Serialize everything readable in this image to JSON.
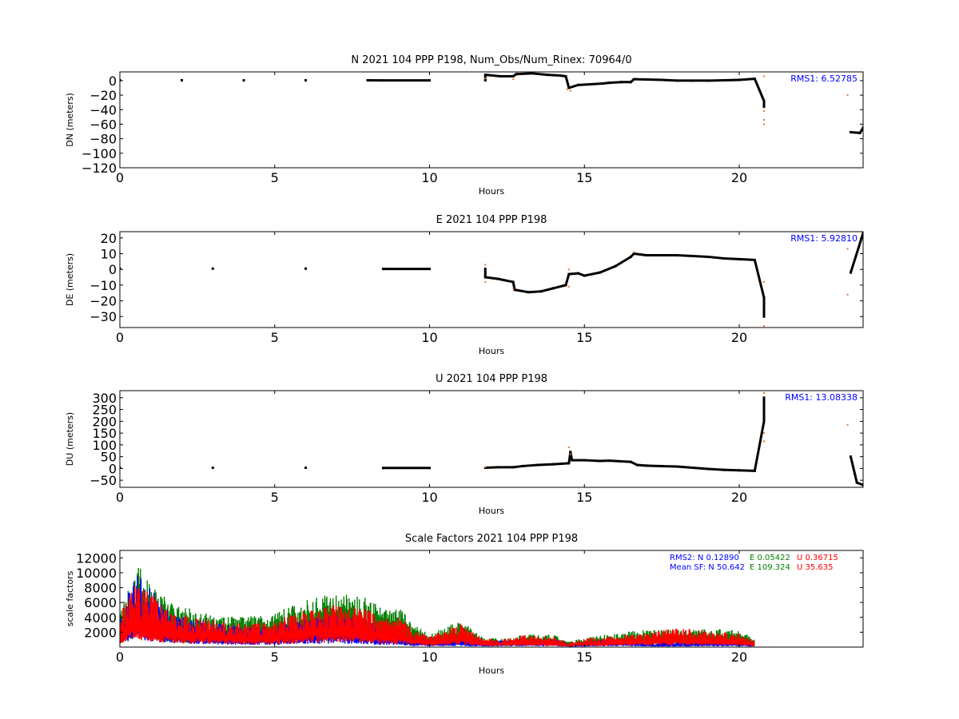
{
  "colors": {
    "background": "#ffffff",
    "axes": "#000000",
    "position": "#000000",
    "outlier": "#e07b39",
    "rms_text": "#0000ff",
    "north": "#0000ff",
    "east": "#008000",
    "up": "#ff0000"
  },
  "chart_data": [
    {
      "type": "scatter",
      "title": "N 2021 104 PPP  P198, Num_Obs/Num_Rinex: 70964/0",
      "xlabel": "Hours",
      "ylabel": "DN (meters)",
      "xlim": [
        0,
        24
      ],
      "ylim": [
        -120,
        12
      ],
      "xticks": [
        0,
        5,
        10,
        15,
        20
      ],
      "yticks": [
        -120,
        -100,
        -80,
        -60,
        -40,
        -20,
        0
      ],
      "grid": false,
      "annotation": "RMS1:  6.52785",
      "series": [
        {
          "points": [
            [
              0,
              0.5
            ],
            [
              2,
              0.5
            ],
            [
              4,
              0.4
            ],
            [
              6,
              0.4
            ],
            [
              8,
              0.5
            ],
            [
              8.5,
              0.3
            ],
            [
              10,
              0.3
            ],
            [
              11.8,
              0.4
            ],
            [
              11.8,
              8
            ],
            [
              12.3,
              6
            ],
            [
              12.7,
              6
            ],
            [
              12.8,
              9
            ],
            [
              13.3,
              10
            ],
            [
              13.8,
              8
            ],
            [
              14.2,
              7
            ],
            [
              14.4,
              6
            ],
            [
              14.5,
              -10
            ],
            [
              14.8,
              -6
            ],
            [
              15.2,
              -5
            ],
            [
              15.6,
              -4
            ],
            [
              15.8,
              -3
            ],
            [
              16.2,
              -2
            ],
            [
              16.5,
              -2
            ],
            [
              16.6,
              2
            ],
            [
              17,
              1.5
            ],
            [
              17.5,
              1
            ],
            [
              18,
              0
            ],
            [
              18.5,
              0
            ],
            [
              19,
              0
            ],
            [
              19.5,
              0.5
            ],
            [
              20,
              1
            ],
            [
              20.5,
              2.5
            ],
            [
              20.8,
              -28
            ],
            [
              20.8,
              -36
            ],
            [
              23.6,
              -71
            ],
            [
              23.9,
              -72
            ],
            [
              24,
              -65
            ]
          ]
        },
        {
          "points": [
            [
              11.8,
              3
            ],
            [
              12.7,
              2
            ],
            [
              14.45,
              -12
            ],
            [
              14.55,
              -14
            ],
            [
              20.8,
              -42
            ],
            [
              20.8,
              -54
            ],
            [
              20.8,
              -60
            ],
            [
              20.8,
              6
            ],
            [
              23.5,
              -20
            ]
          ]
        }
      ]
    },
    {
      "type": "scatter",
      "title": "E 2021 104 PPP  P198",
      "xlabel": "Hours",
      "ylabel": "DE (meters)",
      "xlim": [
        0,
        24
      ],
      "ylim": [
        -37,
        24
      ],
      "xticks": [
        0,
        5,
        10,
        15,
        20
      ],
      "yticks": [
        -30,
        -20,
        -10,
        0,
        10,
        20
      ],
      "grid": false,
      "annotation": "RMS1:  5.92810",
      "series": [
        {
          "points": [
            [
              0,
              0.5
            ],
            [
              3,
              0.5
            ],
            [
              6,
              0.5
            ],
            [
              8.5,
              0.3
            ],
            [
              10,
              0.3
            ],
            [
              11.8,
              0.3
            ],
            [
              11.8,
              -5
            ],
            [
              12.2,
              -6
            ],
            [
              12.7,
              -8
            ],
            [
              12.75,
              -13
            ],
            [
              13.2,
              -14.5
            ],
            [
              13.6,
              -14
            ],
            [
              14,
              -12
            ],
            [
              14.4,
              -10
            ],
            [
              14.5,
              -3
            ],
            [
              14.8,
              -2.5
            ],
            [
              15,
              -4
            ],
            [
              15.5,
              -2
            ],
            [
              16,
              2
            ],
            [
              16.5,
              8
            ],
            [
              16.6,
              10
            ],
            [
              17,
              9
            ],
            [
              17.5,
              9
            ],
            [
              18,
              9
            ],
            [
              18.5,
              8.5
            ],
            [
              19,
              8
            ],
            [
              19.5,
              7
            ],
            [
              20,
              6.5
            ],
            [
              20.5,
              6
            ],
            [
              20.8,
              -18
            ],
            [
              20.8,
              -30
            ],
            [
              23.6,
              -2
            ],
            [
              24,
              23
            ]
          ]
        },
        {
          "points": [
            [
              11.8,
              3
            ],
            [
              11.8,
              -8
            ],
            [
              12.7,
              -12
            ],
            [
              14.5,
              0
            ],
            [
              14.5,
              -11
            ],
            [
              16.6,
              11
            ],
            [
              20.8,
              -8
            ],
            [
              20.8,
              -36
            ],
            [
              23.5,
              13
            ],
            [
              23.5,
              -16
            ]
          ]
        }
      ]
    },
    {
      "type": "scatter",
      "title": "U 2021 104 PPP  P198",
      "xlabel": "Hours",
      "ylabel": "DU (meters)",
      "xlim": [
        0,
        24
      ],
      "ylim": [
        -80,
        330
      ],
      "xticks": [
        0,
        5,
        10,
        15,
        20
      ],
      "yticks": [
        -50,
        0,
        50,
        100,
        150,
        200,
        250,
        300
      ],
      "grid": false,
      "annotation": "RMS1: 13.08338",
      "series": [
        {
          "points": [
            [
              0,
              3
            ],
            [
              3,
              3
            ],
            [
              6,
              3
            ],
            [
              8.5,
              2
            ],
            [
              10,
              2
            ],
            [
              11.8,
              3
            ],
            [
              12.2,
              5
            ],
            [
              12.7,
              5
            ],
            [
              13,
              10
            ],
            [
              13.5,
              15
            ],
            [
              14,
              18
            ],
            [
              14.5,
              22
            ],
            [
              14.55,
              70
            ],
            [
              14.6,
              35
            ],
            [
              15,
              35
            ],
            [
              15.5,
              32
            ],
            [
              15.8,
              33
            ],
            [
              16.2,
              30
            ],
            [
              16.5,
              28
            ],
            [
              16.7,
              15
            ],
            [
              17,
              12
            ],
            [
              17.5,
              10
            ],
            [
              18,
              8
            ],
            [
              18.5,
              3
            ],
            [
              19,
              -2
            ],
            [
              19.5,
              -6
            ],
            [
              20,
              -8
            ],
            [
              20.5,
              -10
            ],
            [
              20.8,
              200
            ],
            [
              20.8,
              250
            ],
            [
              20.8,
              300
            ],
            [
              23.6,
              50
            ],
            [
              23.8,
              -60
            ],
            [
              24,
              -70
            ]
          ]
        },
        {
          "points": [
            [
              11.8,
              5
            ],
            [
              14.5,
              90
            ],
            [
              14.55,
              60
            ],
            [
              20.8,
              320
            ],
            [
              20.8,
              150
            ],
            [
              20.8,
              115
            ],
            [
              23.5,
              185
            ]
          ]
        }
      ]
    },
    {
      "type": "scatter",
      "title": "Scale Factors 2021 104 PPP  P198",
      "xlabel": "Hours",
      "ylabel": "scale factors",
      "xlim": [
        0,
        24
      ],
      "ylim": [
        0,
        13000
      ],
      "xticks": [
        0,
        5,
        10,
        15,
        20
      ],
      "yticks": [
        2000,
        4000,
        6000,
        8000,
        10000,
        12000
      ],
      "grid": false,
      "annotation_lines": [
        "RMS2: N  0.12890",
        "E  0.05422",
        "U  0.36715",
        "Mean SF: N  50.642",
        "E 109.324",
        "U  35.635"
      ],
      "series": [
        {
          "name": "N",
          "points": [
            [
              0,
              2500
            ],
            [
              0.5,
              7000
            ],
            [
              1,
              5500
            ],
            [
              1.5,
              3500
            ],
            [
              2,
              3000
            ],
            [
              3,
              2300
            ],
            [
              4,
              1800
            ],
            [
              5,
              2000
            ],
            [
              6,
              2600
            ],
            [
              7,
              3000
            ],
            [
              8,
              2600
            ],
            [
              8.5,
              1500
            ],
            [
              9,
              1800
            ],
            [
              9.5,
              900
            ],
            [
              10,
              800
            ],
            [
              11,
              900
            ],
            [
              11.8,
              500
            ],
            [
              12,
              600
            ],
            [
              12.7,
              700
            ],
            [
              13,
              800
            ],
            [
              14,
              800
            ],
            [
              14.5,
              300
            ],
            [
              15,
              500
            ],
            [
              16,
              800
            ],
            [
              16.5,
              700
            ],
            [
              17,
              400
            ],
            [
              18,
              500
            ],
            [
              19,
              600
            ],
            [
              20,
              700
            ],
            [
              20.5,
              300
            ]
          ]
        },
        {
          "name": "E",
          "points": [
            [
              0,
              3500
            ],
            [
              0.5,
              8000
            ],
            [
              1,
              6500
            ],
            [
              1.5,
              4500
            ],
            [
              2,
              3800
            ],
            [
              3,
              3000
            ],
            [
              4,
              2800
            ],
            [
              5,
              3200
            ],
            [
              6,
              4400
            ],
            [
              7,
              5000
            ],
            [
              8,
              4600
            ],
            [
              8.5,
              3500
            ],
            [
              9,
              3800
            ],
            [
              9.5,
              2200
            ],
            [
              10,
              1200
            ],
            [
              11,
              2500
            ],
            [
              11.8,
              800
            ],
            [
              12,
              900
            ],
            [
              12.7,
              900
            ],
            [
              13,
              1200
            ],
            [
              14,
              1200
            ],
            [
              14.5,
              500
            ],
            [
              15,
              900
            ],
            [
              16,
              1300
            ],
            [
              16.5,
              1500
            ],
            [
              17,
              1600
            ],
            [
              18,
              1600
            ],
            [
              19,
              1700
            ],
            [
              20,
              1600
            ],
            [
              20.5,
              800
            ]
          ]
        },
        {
          "name": "U",
          "points": [
            [
              0,
              3000
            ],
            [
              0.5,
              6500
            ],
            [
              1,
              5000
            ],
            [
              1.5,
              3500
            ],
            [
              2,
              3000
            ],
            [
              3,
              2500
            ],
            [
              4,
              2200
            ],
            [
              5,
              2500
            ],
            [
              6,
              3500
            ],
            [
              7,
              4000
            ],
            [
              8,
              3500
            ],
            [
              8.5,
              2600
            ],
            [
              9,
              2800
            ],
            [
              9.5,
              1600
            ],
            [
              10,
              1000
            ],
            [
              11,
              2300
            ],
            [
              11.8,
              700
            ],
            [
              12,
              800
            ],
            [
              12.7,
              800
            ],
            [
              13,
              1100
            ],
            [
              14,
              1000
            ],
            [
              14.5,
              400
            ],
            [
              15,
              800
            ],
            [
              16,
              1100
            ],
            [
              16.5,
              1200
            ],
            [
              17,
              1300
            ],
            [
              18,
              1800
            ],
            [
              19,
              1500
            ],
            [
              20,
              1300
            ],
            [
              20.5,
              600
            ]
          ]
        }
      ]
    }
  ]
}
